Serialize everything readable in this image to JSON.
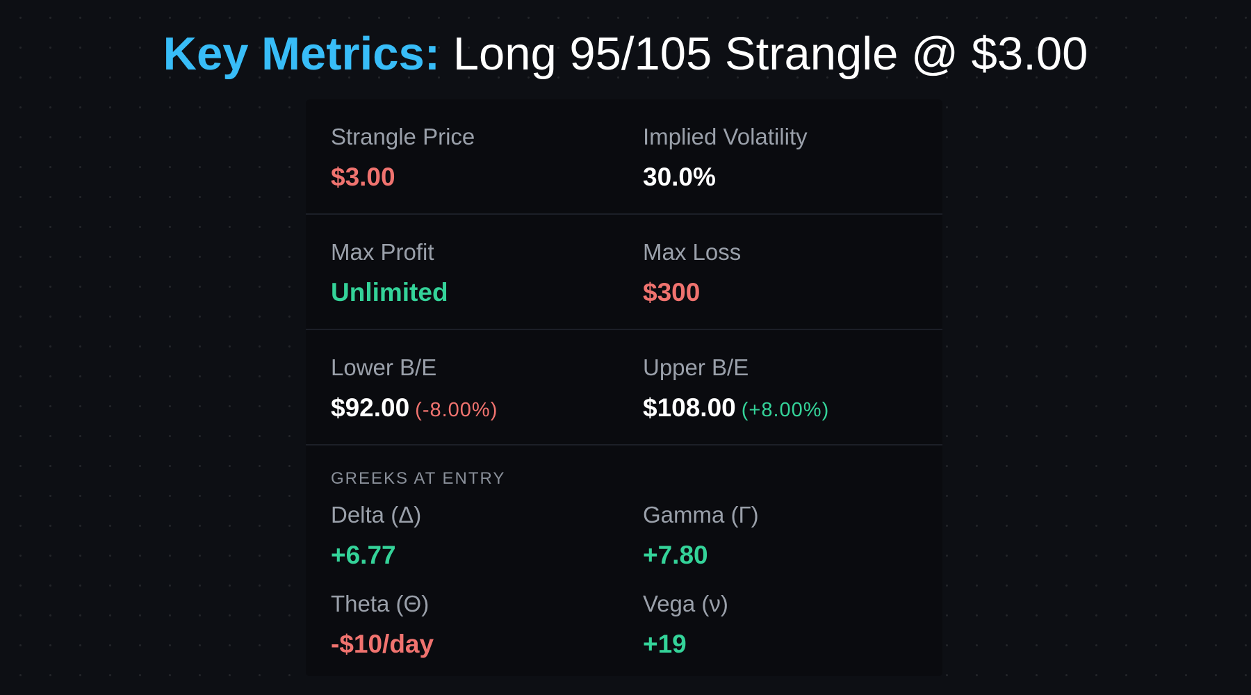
{
  "title": {
    "key": "Key Metrics:",
    "rest": "Long 95/105 Strangle @ $3.00"
  },
  "metrics": {
    "strangle_price": {
      "label": "Strangle Price",
      "value": "$3.00"
    },
    "implied_volatility": {
      "label": "Implied Volatility",
      "value": "30.0%"
    },
    "max_profit": {
      "label": "Max Profit",
      "value": "Unlimited"
    },
    "max_loss": {
      "label": "Max Loss",
      "value": "$300"
    },
    "lower_be": {
      "label": "Lower B/E",
      "value": "$92.00",
      "pct": "(-8.00%)"
    },
    "upper_be": {
      "label": "Upper B/E",
      "value": "$108.00",
      "pct": "(+8.00%)"
    }
  },
  "greeks": {
    "section_title": "GREEKS AT ENTRY",
    "delta": {
      "label": "Delta (Δ)",
      "value": "+6.77"
    },
    "gamma": {
      "label": "Gamma (Γ)",
      "value": "+7.80"
    },
    "theta": {
      "label": "Theta (Θ)",
      "value": "-$10/day"
    },
    "vega": {
      "label": "Vega (ν)",
      "value": "+19"
    }
  },
  "colors": {
    "accent": "#38bdf8",
    "positive": "#34d399",
    "negative": "#f0736f",
    "background": "#0d0f14",
    "card": "#0a0b0f"
  }
}
